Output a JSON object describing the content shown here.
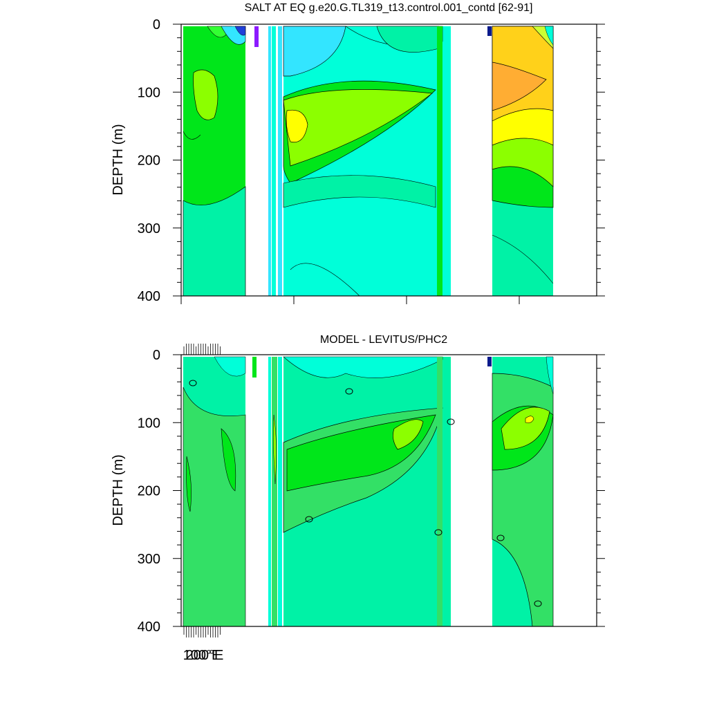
{
  "chart_data": [
    {
      "type": "contour",
      "title": "SALT AT EQ g.e20.G.TL319_t13.control.001_contd [62-91]",
      "ylabel": "DEPTH (m)",
      "ylim": [
        400,
        0
      ],
      "y_ticks": [
        0,
        100,
        200,
        300,
        400
      ],
      "y_tick_labels": [
        "0",
        "100",
        "200",
        "300",
        "400"
      ],
      "x_tick_labels": [],
      "grid": false,
      "land_gaps_lon_index": [
        [
          0.155,
          0.21
        ],
        [
          0.655,
          0.755
        ]
      ],
      "palette": [
        "#0a1a8c",
        "#1f3fd9",
        "#2f7bff",
        "#33b7ff",
        "#33e5ff",
        "#00ffd9",
        "#00f2a6",
        "#00ff7f",
        "#33ff33",
        "#00e61a",
        "#8cff00",
        "#ccff33",
        "#ffff00",
        "#ffd11a",
        "#ffad33",
        "#ff8c1a",
        "#8c1aff"
      ]
    },
    {
      "type": "contour",
      "title": "MODEL - LEVITUS/PHC2",
      "ylabel": "DEPTH (m)",
      "ylim": [
        400,
        0
      ],
      "y_ticks": [
        0,
        100,
        200,
        300,
        400
      ],
      "y_tick_labels": [
        "0",
        "100",
        "200",
        "300",
        "400"
      ],
      "x_tick_labels": [
        "100°E",
        "200°E"
      ],
      "grid": false,
      "zero_contour_labels": [
        "0",
        "0",
        "0",
        "0",
        "0",
        "0",
        "0",
        "0"
      ],
      "palette": [
        "#00f2a6",
        "#00ffd9",
        "#00ff7f",
        "#33ff33",
        "#00e61a",
        "#8cff00",
        "#ccff33",
        "#ffff00"
      ]
    }
  ]
}
